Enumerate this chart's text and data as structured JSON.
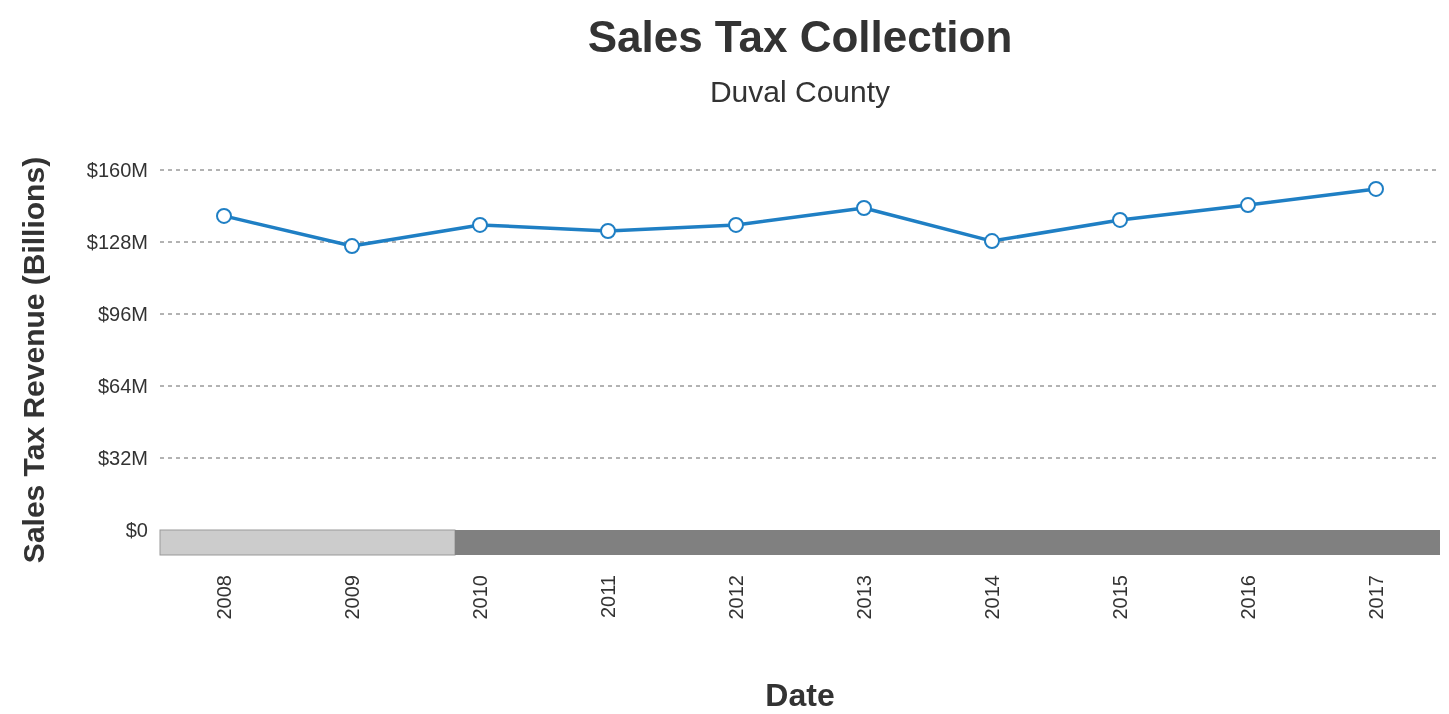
{
  "chart_data": {
    "type": "line",
    "title": "Sales Tax Collection",
    "subtitle": "Duval County",
    "xlabel": "Date",
    "ylabel": "Sales Tax Revenue (Billions)",
    "categories": [
      "2008",
      "2009",
      "2010",
      "2011",
      "2012",
      "2013",
      "2014",
      "2015",
      "2016",
      "2017"
    ],
    "series": [
      {
        "color": "#1f7fc4",
        "values": [
          139.6,
          126.2,
          135.6,
          132.9,
          135.6,
          143.1,
          128.4,
          137.8,
          144.4,
          151.6
        ]
      }
    ],
    "ylim": [
      0,
      160
    ],
    "yticks": [
      {
        "value": 0,
        "label": "$0"
      },
      {
        "value": 32,
        "label": "$32M"
      },
      {
        "value": 64,
        "label": "$64M"
      },
      {
        "value": 96,
        "label": "$96M"
      },
      {
        "value": 128,
        "label": "$128M"
      },
      {
        "value": 160,
        "label": "$160M"
      }
    ],
    "grid": "y",
    "marker": "circle",
    "line_style": "solid"
  }
}
